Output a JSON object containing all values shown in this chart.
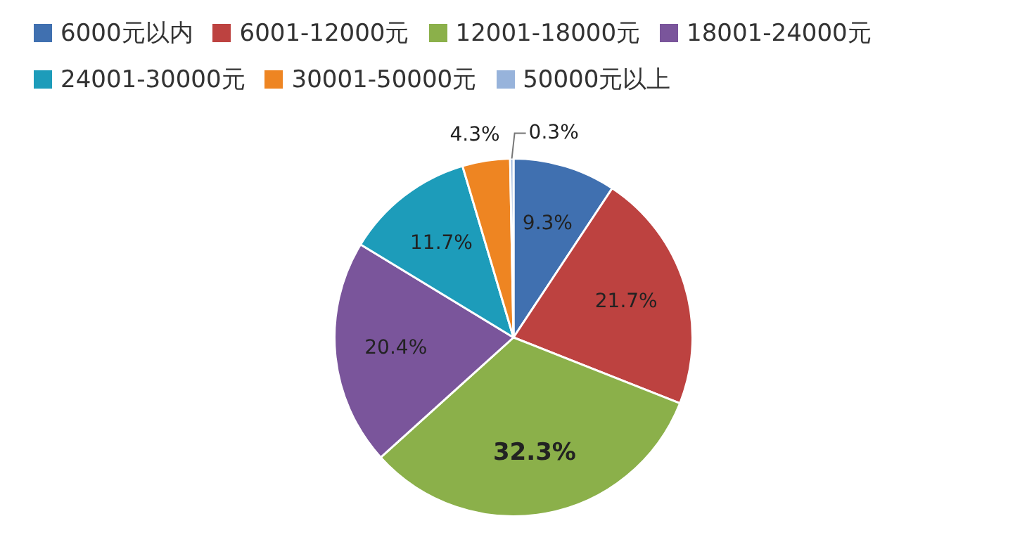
{
  "chart_data": {
    "type": "pie",
    "categories": [
      "6000元以内",
      "6001-12000元",
      "12001-18000元",
      "18001-24000元",
      "24001-30000元",
      "30001-50000元",
      "50000元以上"
    ],
    "values": [
      9.3,
      21.7,
      32.3,
      20.4,
      11.7,
      4.3,
      0.3
    ],
    "value_labels": [
      "9.3%",
      "21.7%",
      "32.3%",
      "20.4%",
      "11.7%",
      "4.3%",
      "0.3%"
    ],
    "colors": [
      "#4070b0",
      "#bd4240",
      "#8bb04a",
      "#7a559b",
      "#1d9cba",
      "#ee8522",
      "#97b3db"
    ],
    "legend": "top"
  }
}
